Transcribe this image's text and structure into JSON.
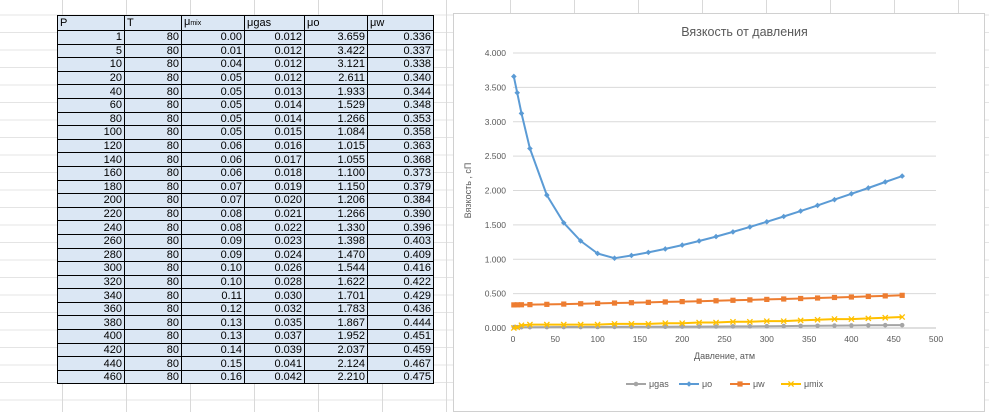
{
  "table": {
    "headers": {
      "p": "P",
      "t": "T",
      "mix": "μ",
      "mix_sub": "mix",
      "gas": "μgas",
      "o": "μo",
      "w": "μw"
    },
    "rows": [
      [
        "1",
        "80",
        "0.00",
        "0.012",
        "3.659",
        "0.336"
      ],
      [
        "5",
        "80",
        "0.01",
        "0.012",
        "3.422",
        "0.337"
      ],
      [
        "10",
        "80",
        "0.04",
        "0.012",
        "3.121",
        "0.338"
      ],
      [
        "20",
        "80",
        "0.05",
        "0.012",
        "2.611",
        "0.340"
      ],
      [
        "40",
        "80",
        "0.05",
        "0.013",
        "1.933",
        "0.344"
      ],
      [
        "60",
        "80",
        "0.05",
        "0.014",
        "1.529",
        "0.348"
      ],
      [
        "80",
        "80",
        "0.05",
        "0.014",
        "1.266",
        "0.353"
      ],
      [
        "100",
        "80",
        "0.05",
        "0.015",
        "1.084",
        "0.358"
      ],
      [
        "120",
        "80",
        "0.06",
        "0.016",
        "1.015",
        "0.363"
      ],
      [
        "140",
        "80",
        "0.06",
        "0.017",
        "1.055",
        "0.368"
      ],
      [
        "160",
        "80",
        "0.06",
        "0.018",
        "1.100",
        "0.373"
      ],
      [
        "180",
        "80",
        "0.07",
        "0.019",
        "1.150",
        "0.379"
      ],
      [
        "200",
        "80",
        "0.07",
        "0.020",
        "1.206",
        "0.384"
      ],
      [
        "220",
        "80",
        "0.08",
        "0.021",
        "1.266",
        "0.390"
      ],
      [
        "240",
        "80",
        "0.08",
        "0.022",
        "1.330",
        "0.396"
      ],
      [
        "260",
        "80",
        "0.09",
        "0.023",
        "1.398",
        "0.403"
      ],
      [
        "280",
        "80",
        "0.09",
        "0.024",
        "1.470",
        "0.409"
      ],
      [
        "300",
        "80",
        "0.10",
        "0.026",
        "1.544",
        "0.416"
      ],
      [
        "320",
        "80",
        "0.10",
        "0.028",
        "1.622",
        "0.422"
      ],
      [
        "340",
        "80",
        "0.11",
        "0.030",
        "1.701",
        "0.429"
      ],
      [
        "360",
        "80",
        "0.12",
        "0.032",
        "1.783",
        "0.436"
      ],
      [
        "380",
        "80",
        "0.13",
        "0.035",
        "1.867",
        "0.444"
      ],
      [
        "400",
        "80",
        "0.13",
        "0.037",
        "1.952",
        "0.451"
      ],
      [
        "420",
        "80",
        "0.14",
        "0.039",
        "2.037",
        "0.459"
      ],
      [
        "440",
        "80",
        "0.15",
        "0.041",
        "2.124",
        "0.467"
      ],
      [
        "460",
        "80",
        "0.16",
        "0.042",
        "2.210",
        "0.475"
      ]
    ]
  },
  "chart_data": {
    "type": "line",
    "title": "Вязкость  от давления",
    "xlabel": "Давление, атм",
    "ylabel": "Вязкость , сП",
    "xlim": [
      0,
      500
    ],
    "ylim": [
      0,
      4
    ],
    "x_ticks": [
      "0",
      "50",
      "100",
      "150",
      "200",
      "250",
      "300",
      "350",
      "400",
      "450",
      "500"
    ],
    "y_ticks": [
      "0.000",
      "0.500",
      "1.000",
      "1.500",
      "2.000",
      "2.500",
      "3.000",
      "3.500",
      "4.000"
    ],
    "grid": true,
    "legend_position": "bottom",
    "x": [
      1,
      5,
      10,
      20,
      40,
      60,
      80,
      100,
      120,
      140,
      160,
      180,
      200,
      220,
      240,
      260,
      280,
      300,
      320,
      340,
      360,
      380,
      400,
      420,
      440,
      460
    ],
    "series": [
      {
        "name": "μgas",
        "color": "#a5a5a5",
        "marker": "circle",
        "values": [
          0.012,
          0.012,
          0.012,
          0.012,
          0.013,
          0.014,
          0.014,
          0.015,
          0.016,
          0.017,
          0.018,
          0.019,
          0.02,
          0.021,
          0.022,
          0.023,
          0.024,
          0.026,
          0.028,
          0.03,
          0.032,
          0.035,
          0.037,
          0.039,
          0.041,
          0.042
        ]
      },
      {
        "name": "μo",
        "color": "#5b9bd5",
        "marker": "diamond",
        "values": [
          3.659,
          3.422,
          3.121,
          2.611,
          1.933,
          1.529,
          1.266,
          1.084,
          1.015,
          1.055,
          1.1,
          1.15,
          1.206,
          1.266,
          1.33,
          1.398,
          1.47,
          1.544,
          1.622,
          1.701,
          1.783,
          1.867,
          1.952,
          2.037,
          2.124,
          2.21
        ]
      },
      {
        "name": "μw",
        "color": "#ed7d31",
        "marker": "square",
        "values": [
          0.336,
          0.337,
          0.338,
          0.34,
          0.344,
          0.348,
          0.353,
          0.358,
          0.363,
          0.368,
          0.373,
          0.379,
          0.384,
          0.39,
          0.396,
          0.403,
          0.409,
          0.416,
          0.422,
          0.429,
          0.436,
          0.444,
          0.451,
          0.459,
          0.467,
          0.475
        ]
      },
      {
        "name": "μmix",
        "color": "#ffc000",
        "marker": "x",
        "values": [
          0.0,
          0.01,
          0.04,
          0.05,
          0.05,
          0.05,
          0.05,
          0.05,
          0.06,
          0.06,
          0.06,
          0.07,
          0.07,
          0.08,
          0.08,
          0.09,
          0.09,
          0.1,
          0.1,
          0.11,
          0.12,
          0.13,
          0.13,
          0.14,
          0.15,
          0.16
        ]
      }
    ]
  }
}
